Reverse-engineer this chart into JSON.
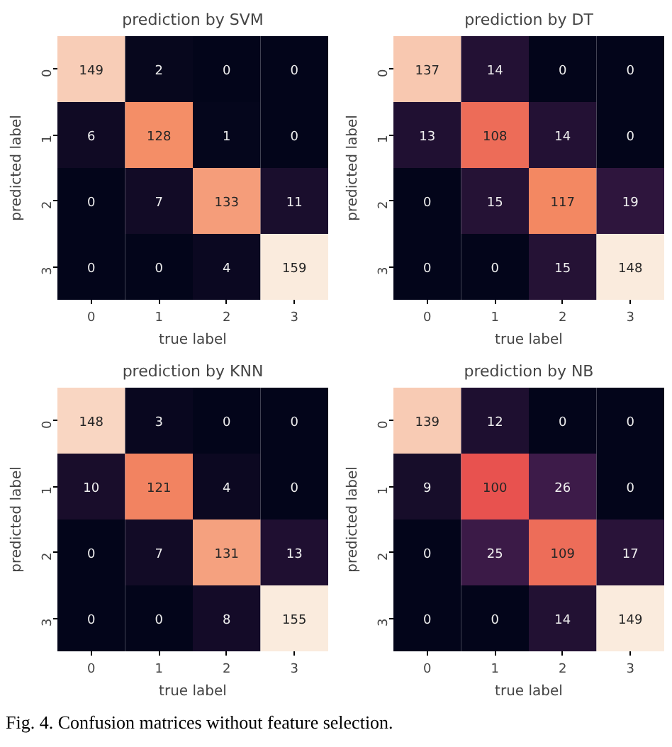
{
  "chart_data": [
    {
      "type": "heatmap",
      "title": "prediction by SVM",
      "xlabel": "true label",
      "ylabel": "predicted label",
      "categories": [
        "0",
        "1",
        "2",
        "3"
      ],
      "y_categories": [
        "0",
        "1",
        "2",
        "3"
      ],
      "data_labels": true,
      "cells": [
        [
          149,
          2,
          0,
          0
        ],
        [
          6,
          128,
          1,
          0
        ],
        [
          0,
          7,
          133,
          11
        ],
        [
          0,
          0,
          4,
          159
        ]
      ]
    },
    {
      "type": "heatmap",
      "title": "prediction by DT",
      "xlabel": "true label",
      "ylabel": "predicted label",
      "categories": [
        "0",
        "1",
        "2",
        "3"
      ],
      "y_categories": [
        "0",
        "1",
        "2",
        "3"
      ],
      "data_labels": true,
      "cells": [
        [
          137,
          14,
          0,
          0
        ],
        [
          13,
          108,
          14,
          0
        ],
        [
          0,
          15,
          117,
          19
        ],
        [
          0,
          0,
          15,
          148
        ]
      ]
    },
    {
      "type": "heatmap",
      "title": "prediction by KNN",
      "xlabel": "true label",
      "ylabel": "predicted label",
      "categories": [
        "0",
        "1",
        "2",
        "3"
      ],
      "y_categories": [
        "0",
        "1",
        "2",
        "3"
      ],
      "data_labels": true,
      "cells": [
        [
          148,
          3,
          0,
          0
        ],
        [
          10,
          121,
          4,
          0
        ],
        [
          0,
          7,
          131,
          13
        ],
        [
          0,
          0,
          8,
          155
        ]
      ]
    },
    {
      "type": "heatmap",
      "title": "prediction by NB",
      "xlabel": "true label",
      "ylabel": "predicted label",
      "categories": [
        "0",
        "1",
        "2",
        "3"
      ],
      "y_categories": [
        "0",
        "1",
        "2",
        "3"
      ],
      "data_labels": true,
      "cells": [
        [
          139,
          12,
          0,
          0
        ],
        [
          9,
          100,
          26,
          0
        ],
        [
          0,
          25,
          109,
          17
        ],
        [
          0,
          0,
          14,
          149
        ]
      ],
      "annotations": [
        "Fig. 4.   Confusion matrices without feature selection."
      ]
    }
  ]
}
